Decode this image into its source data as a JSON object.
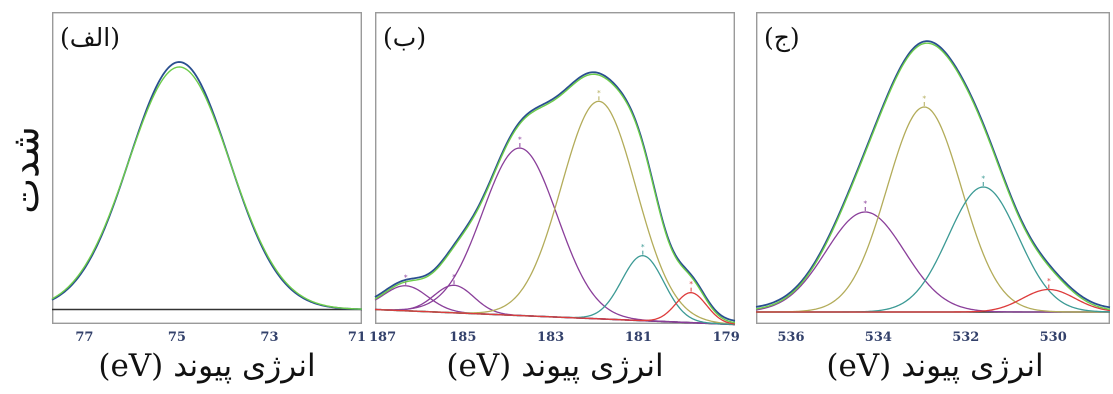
{
  "ylabel": "شدت",
  "xlabel_text": "انرژی پیوند",
  "xlabel_unit": "(eV)",
  "colors": {
    "envelope": "#2a4f8f",
    "fit": "#6ccc4a",
    "baseline": "#333333",
    "purple": "#8a3f9a",
    "olive": "#b3ac5a",
    "teal": "#3c9a95",
    "red": "#dd3b3b"
  },
  "chart_data": [
    {
      "type": "line",
      "panel_label": "(الف)",
      "xlim": [
        77.7,
        71
      ],
      "xticks": [
        77,
        75,
        73,
        71
      ],
      "x_reversed": true,
      "ylim": [
        0,
        1
      ],
      "baseline": [
        0.01,
        0.01
      ],
      "components": [],
      "envelope_peaks": [
        {
          "center": 74.95,
          "height": 0.99,
          "width": 1.08
        }
      ],
      "fit_peaks": [
        {
          "center": 74.95,
          "height": 0.97,
          "width": 1.1
        }
      ]
    },
    {
      "type": "line",
      "panel_label": "(ب)",
      "xlim": [
        187,
        178.8
      ],
      "xticks": [
        187,
        185,
        183,
        181,
        179
      ],
      "x_reversed": true,
      "ylim": [
        0,
        1
      ],
      "baseline": [
        0.01,
        -0.05
      ],
      "components": [
        {
          "name": "peak-1",
          "color": "purple",
          "center": 186.3,
          "height": 0.1,
          "width": 0.5
        },
        {
          "name": "peak-2",
          "color": "purple",
          "center": 185.2,
          "height": 0.11,
          "width": 0.45
        },
        {
          "name": "peak-3",
          "color": "purple",
          "center": 183.7,
          "height": 0.67,
          "width": 0.85
        },
        {
          "name": "peak-4",
          "color": "olive",
          "center": 181.9,
          "height": 0.87,
          "width": 0.85
        },
        {
          "name": "peak-5",
          "color": "teal",
          "center": 180.9,
          "height": 0.26,
          "width": 0.48
        },
        {
          "name": "peak-6",
          "color": "red",
          "center": 179.8,
          "height": 0.12,
          "width": 0.35
        }
      ]
    },
    {
      "type": "line",
      "panel_label": "(ج)",
      "xlim": [
        536.8,
        528.7
      ],
      "xticks": [
        536,
        534,
        532,
        530
      ],
      "x_reversed": true,
      "ylim": [
        0,
        1
      ],
      "baseline": [
        0.0,
        0.0
      ],
      "components": [
        {
          "name": "peak-1",
          "color": "purple",
          "center": 534.3,
          "height": 0.4,
          "width": 0.9
        },
        {
          "name": "peak-2",
          "color": "olive",
          "center": 532.95,
          "height": 0.82,
          "width": 0.85
        },
        {
          "name": "peak-3",
          "color": "teal",
          "center": 531.6,
          "height": 0.5,
          "width": 0.8
        },
        {
          "name": "peak-4",
          "color": "red",
          "center": 530.1,
          "height": 0.09,
          "width": 0.6
        }
      ]
    }
  ]
}
